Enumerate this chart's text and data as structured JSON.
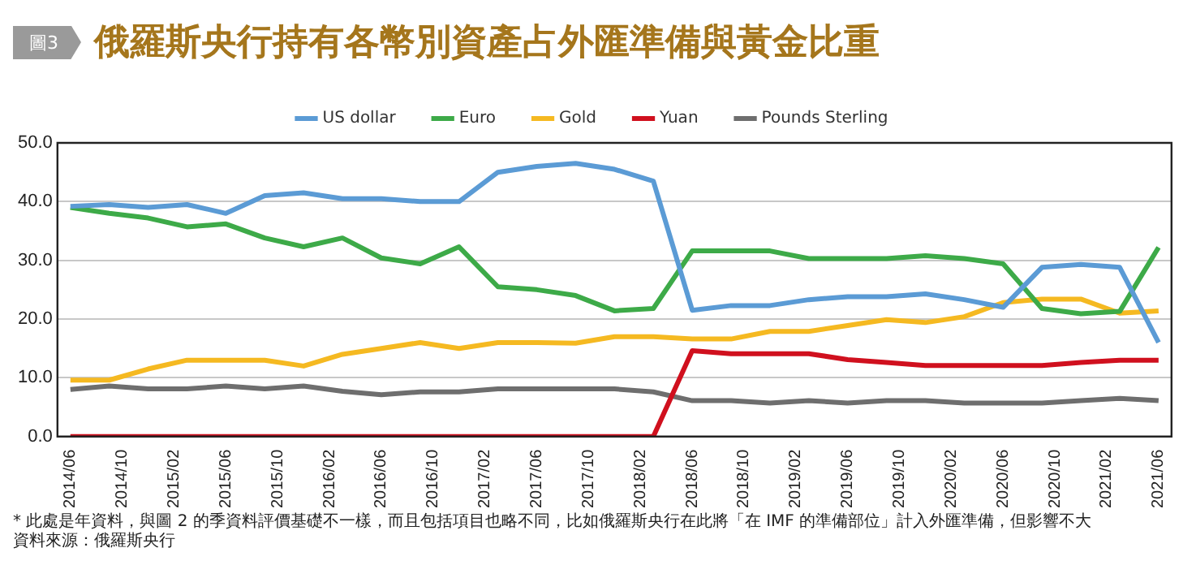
{
  "chart_data": {
    "type": "line",
    "title": "俄羅斯央行持有各幣別資產占外匯準備與黃金比重",
    "subtitle": "圖3",
    "x": [
      "2014-06",
      "2014-09",
      "2014-12",
      "2015-03",
      "2015-06",
      "2015-09",
      "2015-12",
      "2016-03",
      "2016-06",
      "2016-09",
      "2016-12",
      "2017-03",
      "2017-06",
      "2017-09",
      "2017-12",
      "2018-03",
      "2018-06",
      "2018-09",
      "2018-12",
      "2019-03",
      "2019-06",
      "2019-09",
      "2019-12",
      "2020-03",
      "2020-06",
      "2020-09",
      "2020-12",
      "2021-03",
      "2021-06"
    ],
    "series": [
      {
        "name": "US dollar",
        "color": "#5b9bd5",
        "values": [
          39.2,
          39.5,
          39.0,
          39.5,
          38.0,
          41.0,
          41.5,
          40.5,
          40.5,
          40.0,
          40.0,
          45.0,
          46.0,
          46.5,
          45.5,
          43.5,
          21.5,
          22.3,
          22.3,
          23.3,
          23.8,
          23.8,
          24.3,
          23.3,
          22.0,
          28.8,
          29.3,
          28.8,
          16.0
        ]
      },
      {
        "name": "Euro",
        "color": "#3daa48",
        "values": [
          39.0,
          38.0,
          37.2,
          35.7,
          36.2,
          33.8,
          32.3,
          33.8,
          30.4,
          29.4,
          32.3,
          25.5,
          25.0,
          24.0,
          21.4,
          21.8,
          31.6,
          31.6,
          31.6,
          30.3,
          30.3,
          30.3,
          30.8,
          30.3,
          29.4,
          21.8,
          20.9,
          21.3,
          32.2
        ]
      },
      {
        "name": "Gold",
        "color": "#f5b921",
        "values": [
          9.6,
          9.6,
          11.5,
          13.0,
          13.0,
          13.0,
          12.0,
          14.0,
          15.0,
          16.0,
          15.0,
          16.0,
          16.0,
          15.9,
          17.0,
          17.0,
          16.6,
          16.6,
          17.9,
          17.9,
          18.9,
          19.9,
          19.4,
          20.4,
          22.8,
          23.4,
          23.4,
          21.0,
          21.4
        ]
      },
      {
        "name": "Yuan",
        "color": "#d0101e",
        "values": [
          0,
          0,
          0,
          0,
          0,
          0,
          0,
          0,
          0,
          0,
          0,
          0,
          0,
          0,
          0,
          0,
          14.6,
          14.1,
          14.1,
          14.1,
          13.1,
          12.6,
          12.1,
          12.1,
          12.1,
          12.1,
          12.6,
          13.0,
          13.0
        ]
      },
      {
        "name": "Pounds Sterling",
        "color": "#6e6e6e",
        "values": [
          8.0,
          8.6,
          8.1,
          8.1,
          8.6,
          8.1,
          8.6,
          7.7,
          7.1,
          7.6,
          7.6,
          8.1,
          8.1,
          8.1,
          8.1,
          7.6,
          6.1,
          6.1,
          5.7,
          6.1,
          5.7,
          6.1,
          6.1,
          5.7,
          5.7,
          5.7,
          6.1,
          6.5,
          6.1
        ]
      }
    ],
    "xlim": [
      "2014-05",
      "2021-07"
    ],
    "xticks": [
      {
        "value": "2014-06",
        "label": "2014/06"
      },
      {
        "value": "2014-10",
        "label": "2014/10"
      },
      {
        "value": "2015-02",
        "label": "2015/02"
      },
      {
        "value": "2015-06",
        "label": "2015/06"
      },
      {
        "value": "2015-10",
        "label": "2015/10"
      },
      {
        "value": "2016-02",
        "label": "2016/02"
      },
      {
        "value": "2016-06",
        "label": "2016/06"
      },
      {
        "value": "2016-10",
        "label": "2016/10"
      },
      {
        "value": "2017-02",
        "label": "2017/02"
      },
      {
        "value": "2017-06",
        "label": "2017/06"
      },
      {
        "value": "2017-10",
        "label": "2017/10"
      },
      {
        "value": "2018-02",
        "label": "2018/02"
      },
      {
        "value": "2018-06",
        "label": "2018/06"
      },
      {
        "value": "2018-10",
        "label": "2018/10"
      },
      {
        "value": "2019-02",
        "label": "2019/02"
      },
      {
        "value": "2019-06",
        "label": "2019/06"
      },
      {
        "value": "2019-10",
        "label": "2019/10"
      },
      {
        "value": "2020-02",
        "label": "2020/02"
      },
      {
        "value": "2020-06",
        "label": "2020/06"
      },
      {
        "value": "2020-10",
        "label": "2020/10"
      },
      {
        "value": "2021-02",
        "label": "2021/02"
      },
      {
        "value": "2021-06",
        "label": "2021/06"
      }
    ],
    "ylim": [
      0,
      50
    ],
    "yticks": [
      {
        "value": 0,
        "label": "0.0"
      },
      {
        "value": 10,
        "label": "10.0"
      },
      {
        "value": 20,
        "label": "20.0"
      },
      {
        "value": 30,
        "label": "30.0"
      },
      {
        "value": 40,
        "label": "40.0"
      },
      {
        "value": 50,
        "label": "50.0"
      }
    ],
    "grid": "y",
    "legend": "top",
    "marker": "none",
    "line_style": "solid",
    "annotations": [
      "* 此處是年資料，與圖 2 的季資料評價基礎不一樣，而且包括項目也略不同，比如俄羅斯央行在此將「在 IMF 的準備部位」計入外匯準備，但影響不大",
      "資料來源：俄羅斯央行"
    ]
  }
}
